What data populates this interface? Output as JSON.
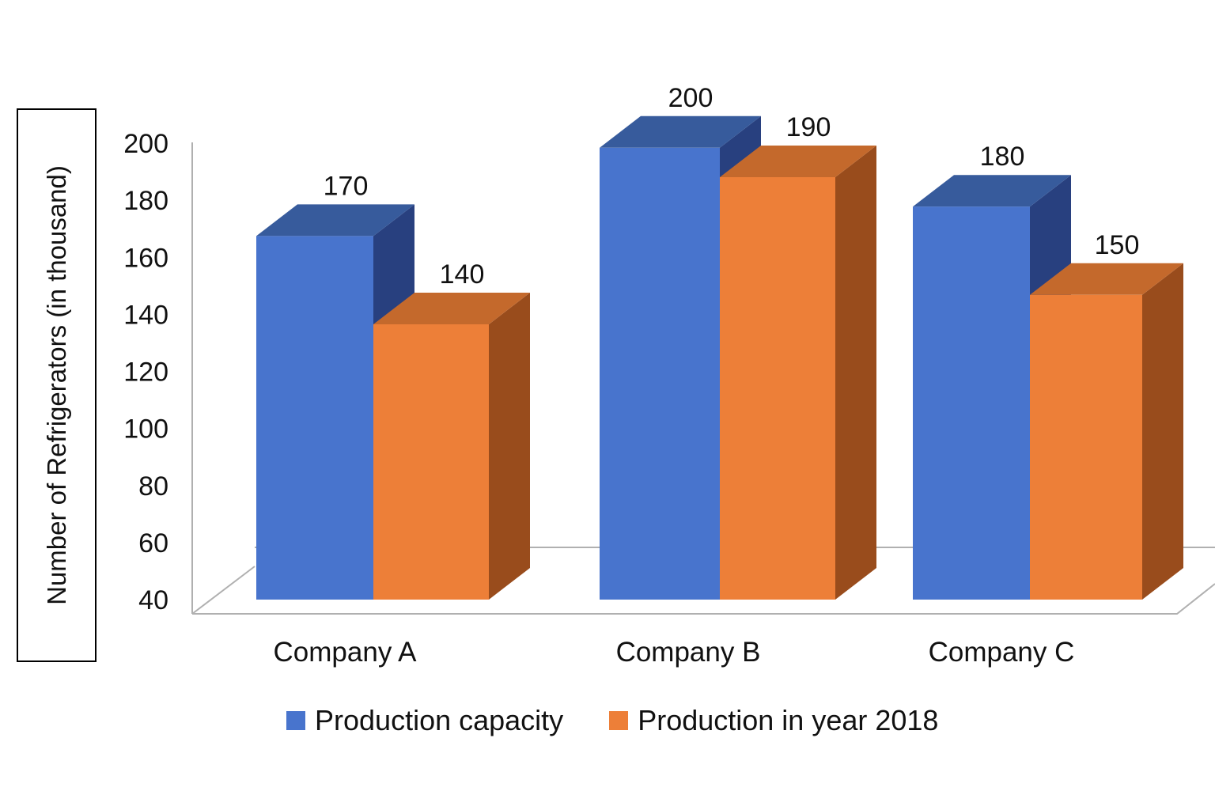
{
  "chart_data": {
    "type": "bar",
    "style": "3d-clustered",
    "title": "",
    "xlabel": "",
    "ylabel": "Number of Refrigerators (in thousand)",
    "categories": [
      "Company A",
      "Company B",
      "Company C"
    ],
    "series": [
      {
        "name": "Production capacity",
        "values": [
          170,
          200,
          180
        ],
        "color": "#4874CD",
        "top_color": "#375B9C",
        "side_color": "#28407F"
      },
      {
        "name": "Production in year 2018",
        "values": [
          140,
          190,
          150
        ],
        "color": "#ED7F38",
        "top_color": "#C4692C",
        "side_color": "#994C1C"
      }
    ],
    "yticks": [
      "200",
      "180",
      "160",
      "140",
      "120",
      "100",
      "80",
      "60",
      "40"
    ],
    "ytick_values": [
      200,
      180,
      160,
      140,
      120,
      100,
      80,
      60,
      40
    ],
    "ylim": [
      40,
      200
    ],
    "data_labels": [
      "170",
      "140",
      "200",
      "190",
      "180",
      "150"
    ],
    "legend_position": "bottom",
    "grid": false
  }
}
